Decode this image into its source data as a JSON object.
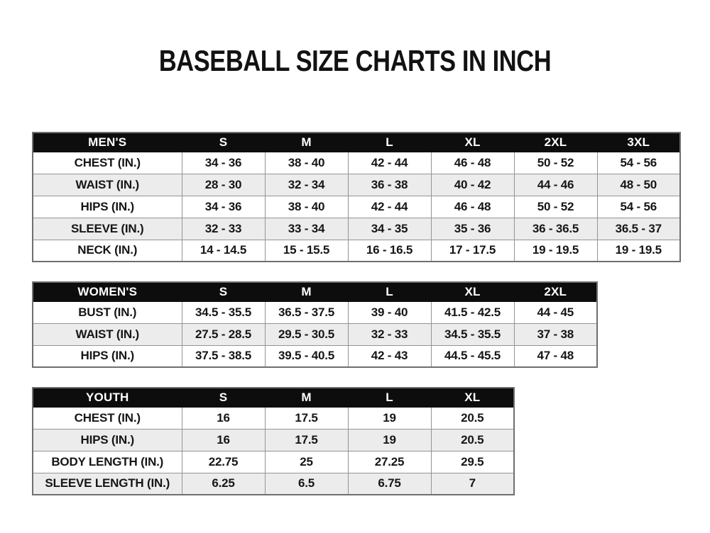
{
  "page": {
    "title": "BASEBALL SIZE CHARTS IN INCH"
  },
  "colors": {
    "header_bg": "#0d0d0d",
    "header_text": "#ffffff",
    "row_bg": "#ffffff",
    "row_alt_bg": "#ececec",
    "cell_border": "#949494",
    "outer_border": "#6f6f6f",
    "text": "#161616"
  },
  "tables": [
    {
      "name": "mens",
      "header": [
        "MEN'S",
        "S",
        "M",
        "L",
        "XL",
        "2XL",
        "3XL"
      ],
      "rows": [
        [
          "CHEST (IN.)",
          "34 - 36",
          "38 - 40",
          "42 - 44",
          "46 - 48",
          "50 - 52",
          "54 - 56"
        ],
        [
          "WAIST (IN.)",
          "28 - 30",
          "32 - 34",
          "36 - 38",
          "40 - 42",
          "44 - 46",
          "48 - 50"
        ],
        [
          "HIPS (IN.)",
          "34 - 36",
          "38 - 40",
          "42 - 44",
          "46 - 48",
          "50 - 52",
          "54 - 56"
        ],
        [
          "SLEEVE (IN.)",
          "32 - 33",
          "33 - 34",
          "34 - 35",
          "35 - 36",
          "36 - 36.5",
          "36.5 - 37"
        ],
        [
          "NECK (IN.)",
          "14 - 14.5",
          "15 - 15.5",
          "16 - 16.5",
          "17 - 17.5",
          "19 - 19.5",
          "19 - 19.5"
        ]
      ]
    },
    {
      "name": "womens",
      "header": [
        "WOMEN'S",
        "S",
        "M",
        "L",
        "XL",
        "2XL"
      ],
      "rows": [
        [
          "BUST (IN.)",
          "34.5 - 35.5",
          "36.5 - 37.5",
          "39 - 40",
          "41.5 - 42.5",
          "44 - 45"
        ],
        [
          "WAIST (IN.)",
          "27.5 - 28.5",
          "29.5 - 30.5",
          "32 - 33",
          "34.5 - 35.5",
          "37 - 38"
        ],
        [
          "HIPS (IN.)",
          "37.5 - 38.5",
          "39.5 - 40.5",
          "42 - 43",
          "44.5 - 45.5",
          "47 - 48"
        ]
      ]
    },
    {
      "name": "youth",
      "header": [
        "YOUTH",
        "S",
        "M",
        "L",
        "XL"
      ],
      "rows": [
        [
          "CHEST (IN.)",
          "16",
          "17.5",
          "19",
          "20.5"
        ],
        [
          "HIPS (IN.)",
          "16",
          "17.5",
          "19",
          "20.5"
        ],
        [
          "BODY LENGTH (IN.)",
          "22.75",
          "25",
          "27.25",
          "29.5"
        ],
        [
          "SLEEVE LENGTH (IN.)",
          "6.25",
          "6.5",
          "6.75",
          "7"
        ]
      ]
    }
  ]
}
